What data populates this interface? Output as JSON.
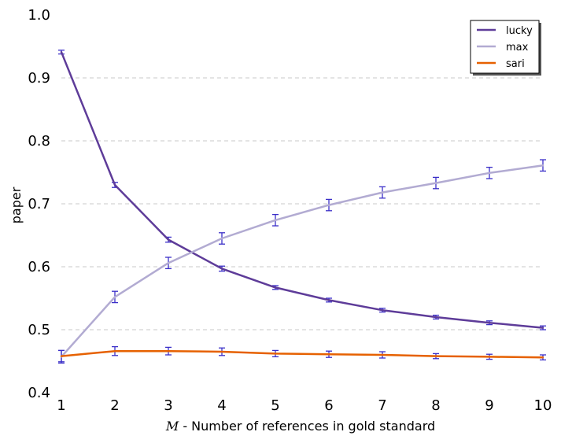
{
  "chart_data": {
    "type": "line",
    "x": [
      1,
      2,
      3,
      4,
      5,
      6,
      7,
      8,
      9,
      10
    ],
    "xlim": [
      1,
      10
    ],
    "ylim": [
      0.4,
      1.0
    ],
    "x_ticks": [
      "1",
      "2",
      "3",
      "4",
      "5",
      "6",
      "7",
      "8",
      "9",
      "10"
    ],
    "y_ticks": [
      "0.4",
      "0.5",
      "0.6",
      "0.7",
      "0.8",
      "0.9",
      "1.0"
    ],
    "xlabel_symbol": "M",
    "xlabel": " - Number of references in gold standard",
    "ylabel": "paper",
    "grid": "horizontal dashed",
    "legend_position": "top-right",
    "errorbar_color": "#3b2fc8",
    "series": [
      {
        "name": "lucky",
        "color": "#5e3c99",
        "values": [
          0.941,
          0.73,
          0.643,
          0.597,
          0.567,
          0.547,
          0.531,
          0.52,
          0.511,
          0.503
        ],
        "errors": [
          0.003,
          0.004,
          0.004,
          0.004,
          0.003,
          0.003,
          0.003,
          0.003,
          0.003,
          0.003
        ]
      },
      {
        "name": "max",
        "color": "#b2abd2",
        "values": [
          0.457,
          0.552,
          0.606,
          0.645,
          0.674,
          0.698,
          0.718,
          0.733,
          0.749,
          0.761
        ],
        "errors": [
          0.01,
          0.009,
          0.009,
          0.009,
          0.009,
          0.009,
          0.009,
          0.009,
          0.009,
          0.009
        ]
      },
      {
        "name": "sari",
        "color": "#e66101",
        "values": [
          0.458,
          0.466,
          0.466,
          0.465,
          0.462,
          0.461,
          0.46,
          0.458,
          0.457,
          0.456
        ],
        "errors": [
          0.009,
          0.007,
          0.006,
          0.006,
          0.005,
          0.005,
          0.005,
          0.004,
          0.004,
          0.004
        ]
      }
    ]
  }
}
